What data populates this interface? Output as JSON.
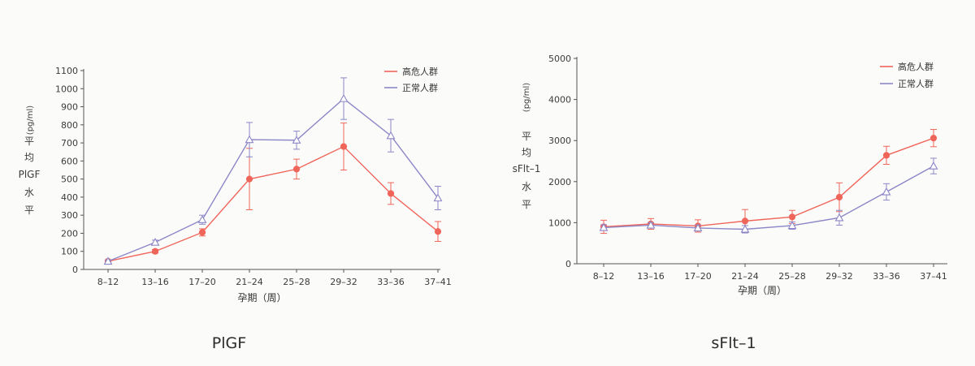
{
  "chart_data": [
    {
      "type": "line",
      "title": "PlGF",
      "ylabel": [
        "平",
        "均",
        "PlGF",
        "水",
        "平"
      ],
      "yunit": "(pg/ml)",
      "xlabel": "孕期（周）",
      "categories": [
        "8–12",
        "13–16",
        "17–20",
        "21–24",
        "25–28",
        "29–32",
        "33–36",
        "37–41"
      ],
      "ylim": [
        0,
        1100
      ],
      "yticks": [
        0,
        100,
        200,
        300,
        400,
        500,
        600,
        700,
        800,
        900,
        1000,
        1100
      ],
      "legend_position": "top-right",
      "series": [
        {
          "name": "高危人群",
          "color": "#f0655a",
          "marker": "circle",
          "values": [
            45,
            100,
            205,
            500,
            555,
            680,
            420,
            210
          ],
          "errors": [
            8,
            10,
            20,
            170,
            55,
            130,
            60,
            55
          ]
        },
        {
          "name": "正常人群",
          "color": "#8c87c6",
          "marker": "triangle",
          "values": [
            45,
            150,
            275,
            718,
            715,
            945,
            740,
            395
          ],
          "errors": [
            8,
            12,
            25,
            95,
            50,
            115,
            90,
            65
          ]
        }
      ]
    },
    {
      "type": "line",
      "title": "sFlt–1",
      "ylabel": [
        "平",
        "均",
        "sFlt–1",
        "水",
        "平"
      ],
      "yunit": "(pg/ml)",
      "xlabel": "孕期（周）",
      "categories": [
        "8–12",
        "13–16",
        "17–20",
        "21–24",
        "25–28",
        "29–32",
        "33–36",
        "37–41"
      ],
      "ylim": [
        0,
        5000
      ],
      "yticks": [
        0,
        1000,
        2000,
        3000,
        4000,
        5000
      ],
      "legend_position": "top-right",
      "series": [
        {
          "name": "高危人群",
          "color": "#f0655a",
          "marker": "circle",
          "values": [
            900,
            970,
            920,
            1040,
            1140,
            1620,
            2640,
            3060
          ],
          "errors": [
            160,
            130,
            150,
            280,
            160,
            350,
            220,
            210
          ]
        },
        {
          "name": "正常人群",
          "color": "#8c87c6",
          "marker": "triangle",
          "values": [
            880,
            940,
            870,
            840,
            930,
            1120,
            1750,
            2380
          ],
          "errors": [
            70,
            60,
            70,
            90,
            90,
            180,
            200,
            190
          ]
        }
      ]
    }
  ]
}
